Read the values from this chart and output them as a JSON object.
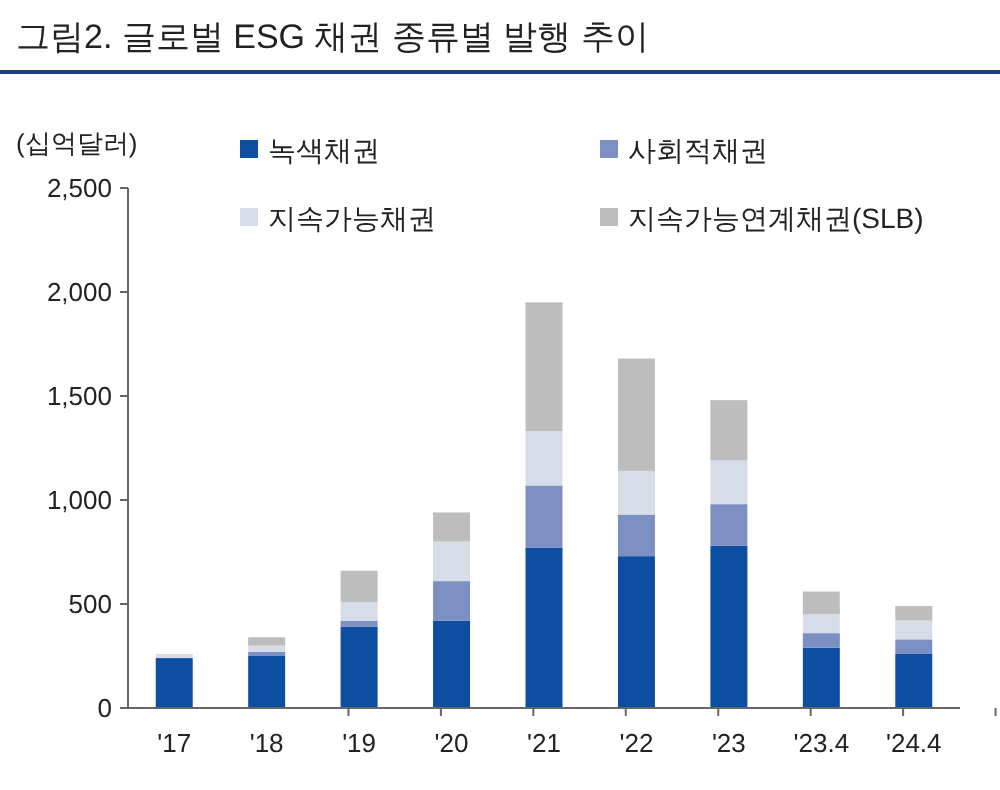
{
  "chart_data": {
    "type": "bar",
    "title": "그림2. 글로벌 ESG 채권 종류별 발행 추이",
    "ylabel": "(십억달러)",
    "stacked": true,
    "legend": "top",
    "grid": false,
    "categories": [
      "'17",
      "'18",
      "'19",
      "'20",
      "'21",
      "'22",
      "'23",
      "'23.4",
      "'24.4"
    ],
    "ylim": [
      0,
      2500
    ],
    "yticks": [
      0,
      {
        "value": 500,
        "label": "500"
      },
      {
        "value": 1000,
        "label": "1,000"
      },
      {
        "value": 1500,
        "label": "1,500"
      },
      {
        "value": 2000,
        "label": "2,000"
      },
      {
        "value": 2500,
        "label": "2,500"
      }
    ],
    "series": [
      {
        "name": "녹색채권",
        "color": "#0b4ea2",
        "values": [
          240,
          250,
          390,
          420,
          770,
          730,
          780,
          290,
          260
        ]
      },
      {
        "name": "사회적채권",
        "color": "#7b8fc2",
        "values": [
          null,
          20,
          30,
          190,
          300,
          200,
          200,
          70,
          70
        ]
      },
      {
        "name": "지속가능채권",
        "color": "#d6dde8",
        "values": [
          20,
          30,
          90,
          190,
          260,
          210,
          210,
          90,
          90
        ]
      },
      {
        "name": "지속가능연계채권(SLB)",
        "color": "#bdbdbd",
        "values": [
          null,
          40,
          150,
          140,
          620,
          540,
          290,
          110,
          70
        ]
      }
    ]
  }
}
